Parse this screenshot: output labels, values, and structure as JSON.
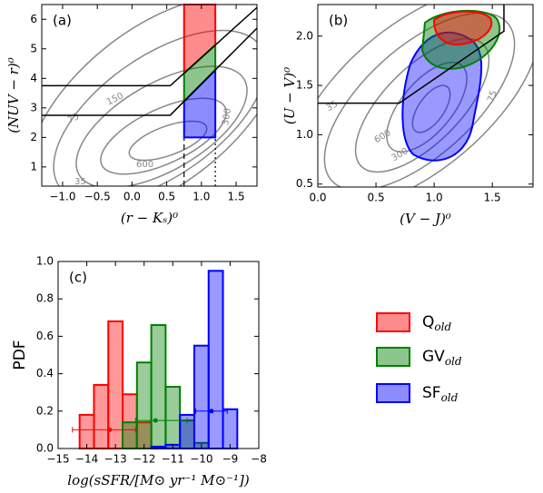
{
  "chart_data": [
    {
      "type": "contour",
      "label": "(a)",
      "xlabel": "(r − Kₛ)⁰",
      "ylabel": "(NUV − r)⁰",
      "xlim": [
        -1.3,
        1.8
      ],
      "ylim": [
        0.35,
        6.5
      ],
      "xticks": [
        {
          "value": -1.0,
          "label": "−1.0"
        },
        {
          "value": -0.5,
          "label": "−0.5"
        },
        {
          "value": 0.0,
          "label": "0.0"
        },
        {
          "value": 0.5,
          "label": "0.5"
        },
        {
          "value": 1.0,
          "label": "1.0"
        },
        {
          "value": 1.5,
          "label": "1.5"
        }
      ],
      "yticks": [
        1,
        2,
        3,
        4,
        5,
        6
      ],
      "contour_labels": [
        "75",
        "150",
        "300",
        "600",
        "35"
      ],
      "regions": [
        {
          "color": "#ff0000",
          "points": [
            [
              0.75,
              4.17
            ],
            [
              0.75,
              6.5
            ],
            [
              1.2,
              6.5
            ],
            [
              1.2,
              5.13
            ]
          ]
        },
        {
          "color": "#008000",
          "points": [
            [
              0.75,
              3.22
            ],
            [
              0.75,
              4.17
            ],
            [
              1.2,
              5.13
            ],
            [
              1.2,
              4.28
            ]
          ]
        },
        {
          "color": "#0000ff",
          "points": [
            [
              0.75,
              2.0
            ],
            [
              0.75,
              3.22
            ],
            [
              1.2,
              4.28
            ],
            [
              1.2,
              2.0
            ]
          ]
        }
      ],
      "lines": [
        {
          "points": [
            [
              -1.3,
              3.75
            ],
            [
              0.55,
              3.75
            ],
            [
              1.8,
              6.4
            ]
          ]
        },
        {
          "points": [
            [
              -1.3,
              2.75
            ],
            [
              0.55,
              2.75
            ],
            [
              1.8,
              5.7
            ]
          ]
        }
      ],
      "vlines": [
        {
          "x": 0.75,
          "style": "dashed"
        },
        {
          "x": 1.2,
          "style": "dotted"
        }
      ]
    },
    {
      "type": "contour",
      "label": "(b)",
      "xlabel": "(V − J)⁰",
      "ylabel": "(U − V)⁰",
      "xlim": [
        0,
        1.85
      ],
      "ylim": [
        0.47,
        2.32
      ],
      "xticks": [
        {
          "value": 0.0,
          "label": "0.0"
        },
        0.5,
        {
          "value": 1.0,
          "label": "1.0"
        },
        1.5
      ],
      "yticks": [
        0.5,
        {
          "value": 1.0,
          "label": "1.0"
        },
        1.5,
        {
          "value": 2.0,
          "label": "2.0"
        }
      ],
      "contour_labels": [
        "35",
        "600",
        "300",
        "75"
      ],
      "regions": [],
      "lines": [
        {
          "points": [
            [
              0,
              1.32
            ],
            [
              0.7,
              1.32
            ],
            [
              1.6,
              2.05
            ],
            [
              1.6,
              2.32
            ]
          ]
        }
      ],
      "vlines": []
    },
    {
      "type": "histogram",
      "label": "(c)",
      "xlabel": "log(sSFR/[M⊙ yr⁻¹ M⊙⁻¹])",
      "ylabel": "PDF",
      "xlim": [
        -15,
        -8
      ],
      "ylim": [
        0,
        1.0
      ],
      "xticks": [
        {
          "value": -15,
          "label": "−15"
        },
        {
          "value": -14,
          "label": "−14"
        },
        {
          "value": -13,
          "label": "−13"
        },
        {
          "value": -12,
          "label": "−12"
        },
        {
          "value": -11,
          "label": "−11"
        },
        {
          "value": -10,
          "label": "−10"
        },
        {
          "value": -9,
          "label": "−9"
        },
        {
          "value": -8,
          "label": "−8"
        }
      ],
      "yticks": [
        {
          "value": 0,
          "label": "0.0"
        },
        0.2,
        0.4,
        0.6,
        0.8,
        {
          "value": 1.0,
          "label": "1.0"
        }
      ],
      "bins": [
        -14.25,
        -13.75,
        -13.25,
        -12.75,
        -12.25,
        -11.75,
        -11.25,
        -10.75,
        -10.25,
        -9.75,
        -9.25,
        -8.75
      ],
      "series": [
        {
          "name": "Q",
          "subscript": "old",
          "color": "#ff0000",
          "values": [
            0.18,
            0.34,
            0.68,
            0.29,
            0.14,
            0.01,
            0,
            0,
            0,
            0,
            0
          ],
          "errorbar": {
            "x": -13.2,
            "y": 0.1,
            "xlow": -14.5,
            "xhigh": -12.3
          }
        },
        {
          "name": "GV",
          "subscript": "old",
          "color": "#008000",
          "values": [
            0,
            0,
            0,
            0.14,
            0.46,
            0.66,
            0.33,
            0.15,
            0.03,
            0,
            0
          ],
          "errorbar": {
            "x": -11.6,
            "y": 0.15,
            "xlow": -12.3,
            "xhigh": -10.5
          }
        },
        {
          "name": "SF",
          "subscript": "old",
          "color": "#0000ff",
          "values": [
            0,
            0,
            0,
            0,
            0,
            0.01,
            0.02,
            0.18,
            0.55,
            0.95,
            0.21
          ],
          "errorbar": {
            "x": -9.65,
            "y": 0.2,
            "xlow": -10.2,
            "xhigh": -9.1
          }
        }
      ]
    }
  ]
}
